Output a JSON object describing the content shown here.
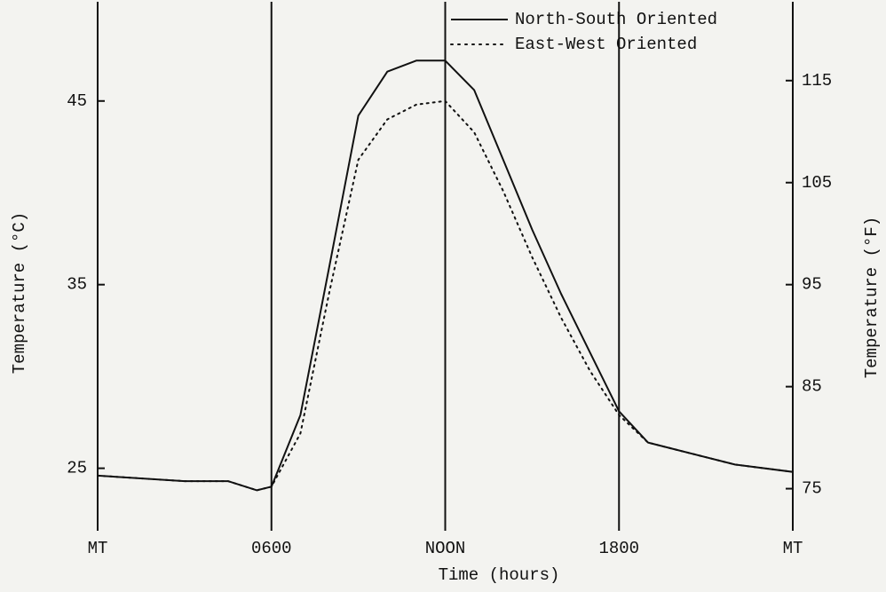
{
  "chart_data": {
    "type": "line",
    "x_label": "Time (hours)",
    "y_label": "Temperature (°C)",
    "y2_label": "Temperature (°F)",
    "xlim": [
      0,
      24
    ],
    "xticks": [
      {
        "value": 0,
        "label": "MT"
      },
      {
        "value": 6,
        "label": "0600"
      },
      {
        "value": 12,
        "label": "NOON"
      },
      {
        "value": 18,
        "label": "1800"
      },
      {
        "value": 24,
        "label": "MT"
      }
    ],
    "ylim": [
      21.5,
      50.5
    ],
    "yticks": [
      25,
      35,
      45
    ],
    "y2lim": [
      70.7,
      122.9
    ],
    "y2ticks": [
      75,
      85,
      95,
      105,
      115
    ],
    "grid": true,
    "x": [
      0,
      3,
      4.5,
      5.5,
      6,
      7,
      8,
      9,
      10,
      11,
      12,
      13,
      14,
      15,
      16,
      17,
      18,
      19,
      20,
      22,
      24
    ],
    "series": [
      {
        "name": "North-South Oriented",
        "color": "#111111",
        "style": "solid",
        "values": [
          24.6,
          24.3,
          24.3,
          23.8,
          24.0,
          27.9,
          36.0,
          44.2,
          46.6,
          47.2,
          47.2,
          45.6,
          41.8,
          38.0,
          34.5,
          31.3,
          28.1,
          26.4,
          26.0,
          25.2,
          24.8
        ]
      },
      {
        "name": "East-West Oriented",
        "color": "#111111",
        "style": "dotted",
        "values": [
          24.6,
          24.3,
          24.3,
          23.8,
          24.0,
          26.9,
          34.6,
          41.8,
          44.0,
          44.8,
          45.0,
          43.3,
          40.1,
          36.5,
          33.2,
          30.3,
          27.9,
          26.4,
          26.0,
          25.2,
          24.8
        ]
      }
    ]
  }
}
